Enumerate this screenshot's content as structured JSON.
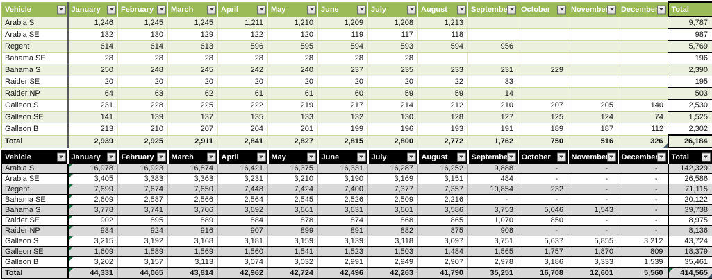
{
  "colors": {
    "green_header_bg": "#9BBB59",
    "green_band_bg": "#EBF1DE",
    "dark_header_bg": "#000000",
    "dark_band_bg": "#D9D9D9",
    "error_indicator": "#1E7145",
    "header_text": "#FFFFFF"
  },
  "columns": [
    "Vehicle",
    "January",
    "February",
    "March",
    "April",
    "May",
    "June",
    "July",
    "August",
    "September",
    "October",
    "November",
    "December",
    "Total"
  ],
  "tables": [
    {
      "id": "top_table",
      "theme": "green",
      "total_filter": false,
      "january_error_flags": false,
      "grand_total_error_flag": false,
      "rows": [
        {
          "vehicle": "Arabia S",
          "months": [
            "1,246",
            "1,245",
            "1,245",
            "1,211",
            "1,210",
            "1,209",
            "1,208",
            "1,213",
            "",
            "",
            "",
            ""
          ],
          "total": "9,787"
        },
        {
          "vehicle": "Arabia SE",
          "months": [
            "132",
            "130",
            "129",
            "122",
            "120",
            "119",
            "117",
            "118",
            "",
            "",
            "",
            ""
          ],
          "total": "987"
        },
        {
          "vehicle": "Regent",
          "months": [
            "614",
            "614",
            "613",
            "596",
            "595",
            "594",
            "593",
            "594",
            "956",
            "",
            "",
            ""
          ],
          "total": "5,769"
        },
        {
          "vehicle": "Bahama SE",
          "months": [
            "28",
            "28",
            "28",
            "28",
            "28",
            "28",
            "28",
            "",
            "",
            "",
            "",
            ""
          ],
          "total": "196"
        },
        {
          "vehicle": "Bahama S",
          "months": [
            "250",
            "248",
            "245",
            "242",
            "240",
            "237",
            "235",
            "233",
            "231",
            "229",
            "",
            ""
          ],
          "total": "2,390"
        },
        {
          "vehicle": "Raider SE",
          "months": [
            "20",
            "20",
            "20",
            "20",
            "20",
            "20",
            "20",
            "22",
            "33",
            "",
            "",
            ""
          ],
          "total": "195"
        },
        {
          "vehicle": "Raider NP",
          "months": [
            "64",
            "63",
            "62",
            "61",
            "61",
            "60",
            "59",
            "59",
            "14",
            "",
            "",
            ""
          ],
          "total": "503"
        },
        {
          "vehicle": "Galleon S",
          "months": [
            "231",
            "228",
            "225",
            "222",
            "219",
            "217",
            "214",
            "212",
            "210",
            "207",
            "205",
            "140"
          ],
          "total": "2,530"
        },
        {
          "vehicle": "Galleon SE",
          "months": [
            "141",
            "139",
            "137",
            "135",
            "133",
            "132",
            "130",
            "128",
            "127",
            "125",
            "124",
            "74"
          ],
          "total": "1,525"
        },
        {
          "vehicle": "Galleon B",
          "months": [
            "213",
            "210",
            "207",
            "204",
            "201",
            "199",
            "196",
            "193",
            "191",
            "189",
            "187",
            "112"
          ],
          "total": "2,302"
        }
      ],
      "total_row": {
        "vehicle": "Total",
        "months": [
          "2,939",
          "2,925",
          "2,911",
          "2,841",
          "2,827",
          "2,815",
          "2,800",
          "2,772",
          "1,762",
          "750",
          "516",
          "326"
        ],
        "total": "26,184"
      }
    },
    {
      "id": "bottom_table",
      "theme": "dark",
      "total_filter": true,
      "january_error_flags": true,
      "grand_total_error_flag": true,
      "rows": [
        {
          "vehicle": "Arabia S",
          "months": [
            "16,978",
            "16,923",
            "16,874",
            "16,421",
            "16,375",
            "16,331",
            "16,287",
            "16,252",
            "9,888",
            "-",
            "-",
            "-"
          ],
          "total": "142,329"
        },
        {
          "vehicle": "Arabia SE",
          "months": [
            "3,405",
            "3,383",
            "3,363",
            "3,231",
            "3,210",
            "3,190",
            "3,169",
            "3,151",
            "484",
            "-",
            "-",
            "-"
          ],
          "total": "26,586"
        },
        {
          "vehicle": "Regent",
          "months": [
            "7,699",
            "7,674",
            "7,650",
            "7,448",
            "7,424",
            "7,400",
            "7,377",
            "7,357",
            "10,854",
            "232",
            "-",
            "-"
          ],
          "total": "71,115"
        },
        {
          "vehicle": "Bahama SE",
          "months": [
            "2,609",
            "2,587",
            "2,566",
            "2,564",
            "2,545",
            "2,526",
            "2,509",
            "2,216",
            "-",
            "-",
            "-",
            "-"
          ],
          "total": "20,122"
        },
        {
          "vehicle": "Bahama S",
          "months": [
            "3,778",
            "3,741",
            "3,706",
            "3,692",
            "3,661",
            "3,631",
            "3,601",
            "3,586",
            "3,753",
            "5,046",
            "1,543",
            "-"
          ],
          "total": "39,738"
        },
        {
          "vehicle": "Raider SE",
          "months": [
            "902",
            "895",
            "889",
            "884",
            "878",
            "874",
            "868",
            "865",
            "1,070",
            "850",
            "-",
            "-"
          ],
          "total": "8,975"
        },
        {
          "vehicle": "Raider NP",
          "months": [
            "934",
            "924",
            "916",
            "907",
            "899",
            "891",
            "882",
            "875",
            "908",
            "-",
            "-",
            "-"
          ],
          "total": "8,136"
        },
        {
          "vehicle": "Galleon S",
          "months": [
            "3,215",
            "3,192",
            "3,168",
            "3,181",
            "3,159",
            "3,139",
            "3,118",
            "3,097",
            "3,751",
            "5,637",
            "5,855",
            "3,212"
          ],
          "total": "43,724"
        },
        {
          "vehicle": "Galleon SE",
          "months": [
            "1,609",
            "1,589",
            "1,569",
            "1,560",
            "1,541",
            "1,523",
            "1,503",
            "1,484",
            "1,565",
            "1,757",
            "1,870",
            "809"
          ],
          "total": "18,379"
        },
        {
          "vehicle": "Galleon B",
          "months": [
            "3,202",
            "3,157",
            "3,113",
            "3,074",
            "3,032",
            "2,991",
            "2,949",
            "2,907",
            "2,978",
            "3,186",
            "3,333",
            "1,539"
          ],
          "total": "35,461"
        }
      ],
      "total_row": {
        "vehicle": "Total",
        "months": [
          "44,331",
          "44,065",
          "43,814",
          "42,962",
          "42,724",
          "42,496",
          "42,263",
          "41,790",
          "35,251",
          "16,708",
          "12,601",
          "5,560"
        ],
        "total": "414,565"
      }
    }
  ]
}
